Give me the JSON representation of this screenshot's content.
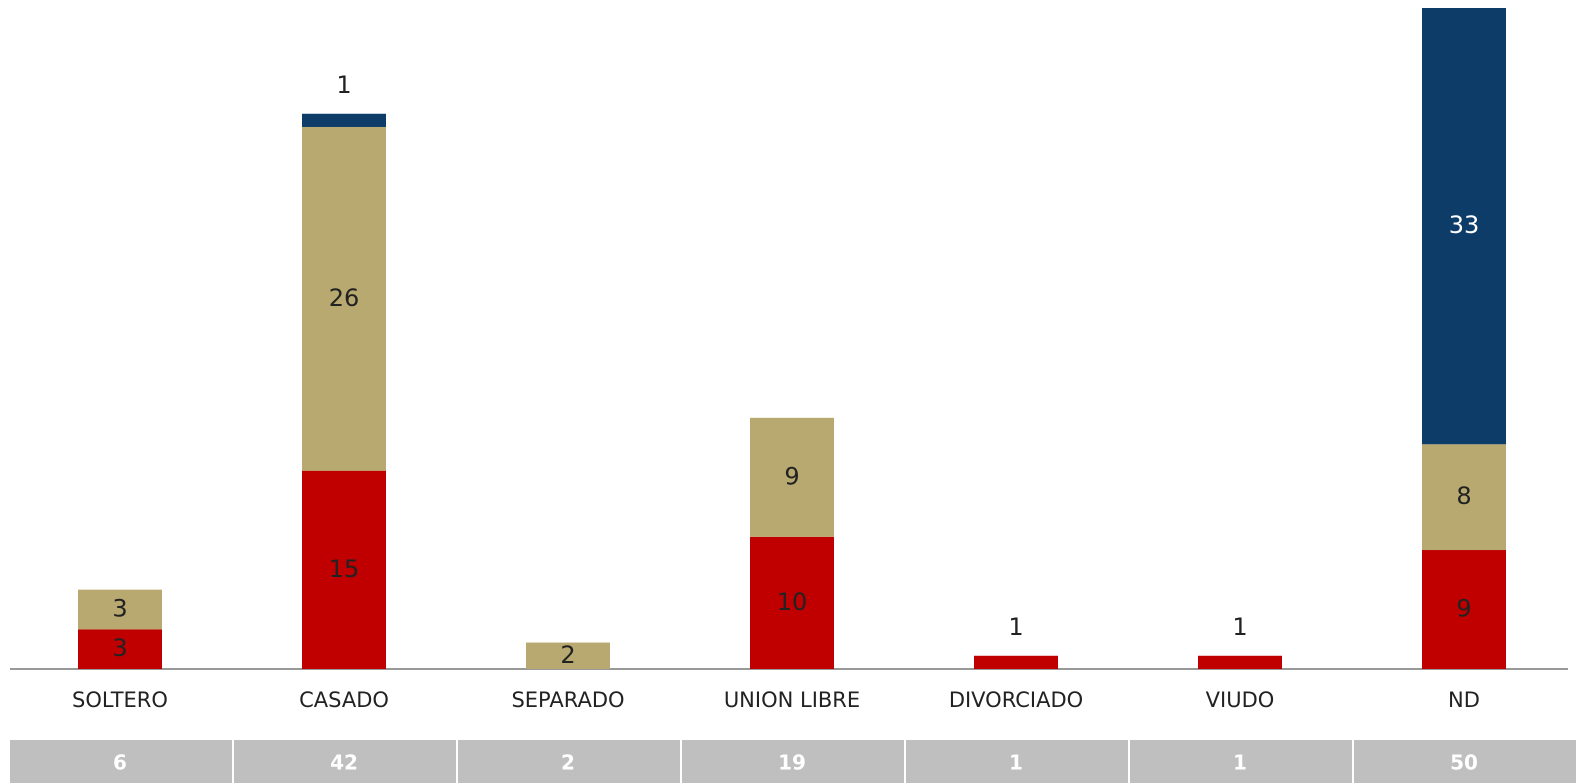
{
  "chart_data": {
    "type": "stacked_bar",
    "categories": [
      "SOLTERO",
      "CASADO",
      "SEPARADO",
      "UNION LIBRE",
      "DIVORCIADO",
      "VIUDO",
      "ND"
    ],
    "series": [
      {
        "color": "#c00000",
        "label_color": "#222222",
        "values": [
          3,
          15,
          null,
          10,
          1,
          1,
          9
        ]
      },
      {
        "color": "#b8a970",
        "label_color": "#222222",
        "values": [
          3,
          26,
          2,
          9,
          null,
          null,
          8
        ]
      },
      {
        "color": "#0e3c69",
        "label_color": "#ffffff",
        "values": [
          null,
          1,
          null,
          null,
          null,
          null,
          33
        ]
      }
    ],
    "totals": [
      6,
      42,
      2,
      19,
      1,
      1,
      50
    ],
    "ylim": [
      0,
      50
    ]
  }
}
